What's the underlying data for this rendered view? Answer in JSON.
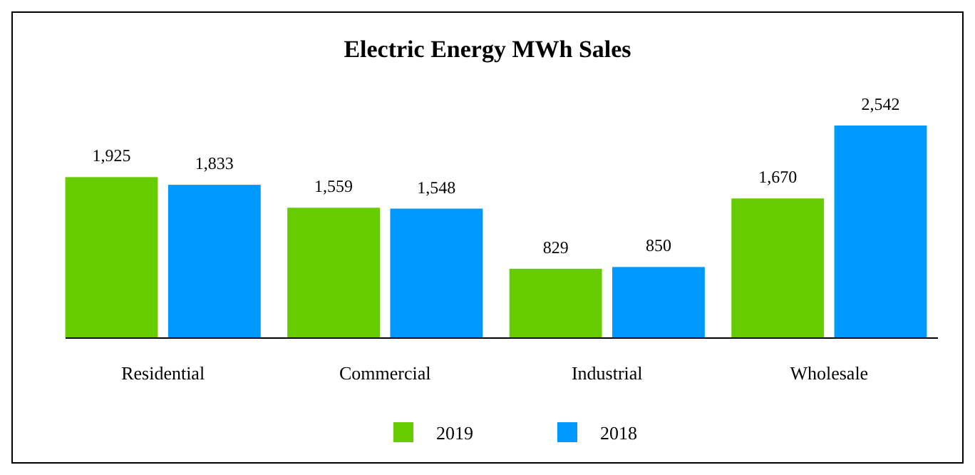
{
  "chart_data": {
    "type": "bar",
    "title": "Electric Energy MWh Sales",
    "categories": [
      "Residential",
      "Commercial",
      "Industrial",
      "Wholesale"
    ],
    "series": [
      {
        "name": "2019",
        "color": "#66cc00",
        "values": [
          1925,
          1559,
          829,
          1670
        ],
        "value_labels": [
          "1,925",
          "1,559",
          "829",
          "1,670"
        ]
      },
      {
        "name": "2018",
        "color": "#0099ff",
        "values": [
          1833,
          1548,
          850,
          2542
        ],
        "value_labels": [
          "1,833",
          "1,548",
          "850",
          "2,542"
        ]
      }
    ],
    "legend": "bottom"
  }
}
